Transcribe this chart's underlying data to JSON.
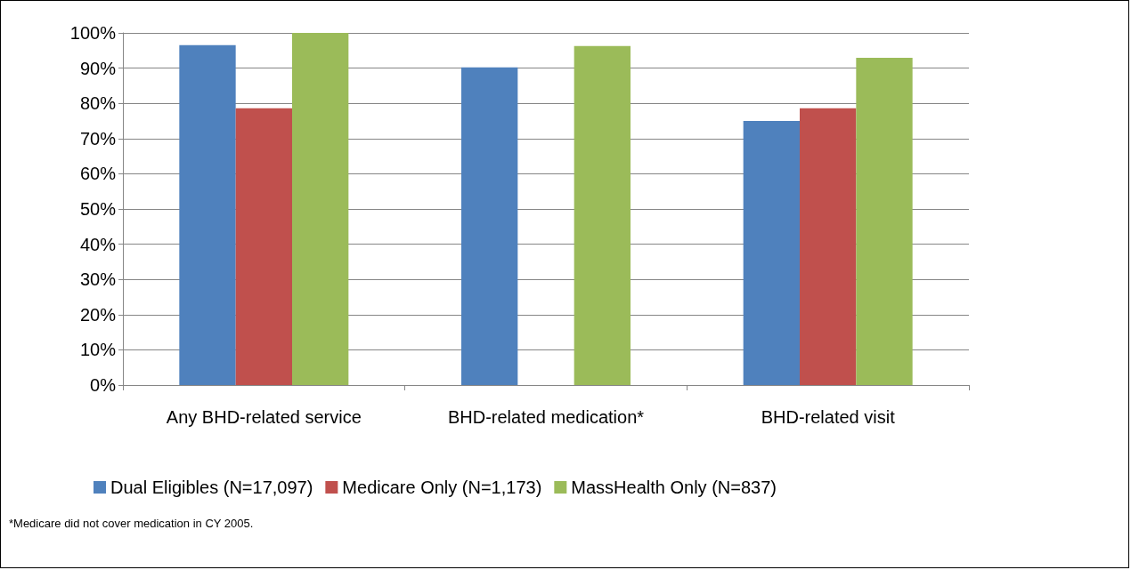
{
  "chart_data": {
    "type": "bar",
    "categories": [
      "Any BHD-related service",
      "BHD-related medication*",
      "BHD-related visit"
    ],
    "series": [
      {
        "name": "Dual Eligibles (N=17,097)",
        "color": "#4f81bd",
        "values": [
          96.5,
          90.2,
          75.0
        ]
      },
      {
        "name": "Medicare Only (N=1,173)",
        "color": "#c0504d",
        "values": [
          78.6,
          null,
          78.6
        ]
      },
      {
        "name": "MassHealth Only (N=837)",
        "color": "#9bbb59",
        "values": [
          100,
          96.3,
          92.9
        ]
      }
    ],
    "ylim": [
      0,
      100
    ],
    "yticks": [
      {
        "value": 0,
        "label": "0%"
      },
      {
        "value": 10,
        "label": "10%"
      },
      {
        "value": 20,
        "label": "20%"
      },
      {
        "value": 30,
        "label": "30%"
      },
      {
        "value": 40,
        "label": "40%"
      },
      {
        "value": 50,
        "label": "50%"
      },
      {
        "value": 60,
        "label": "60%"
      },
      {
        "value": 70,
        "label": "70%"
      },
      {
        "value": 80,
        "label": "80%"
      },
      {
        "value": 90,
        "label": "90%"
      },
      {
        "value": 100,
        "label": "100%"
      }
    ],
    "grid": "y",
    "legend": "bottom",
    "annotations": [
      "*Medicare did not cover medication in CY 2005."
    ]
  }
}
